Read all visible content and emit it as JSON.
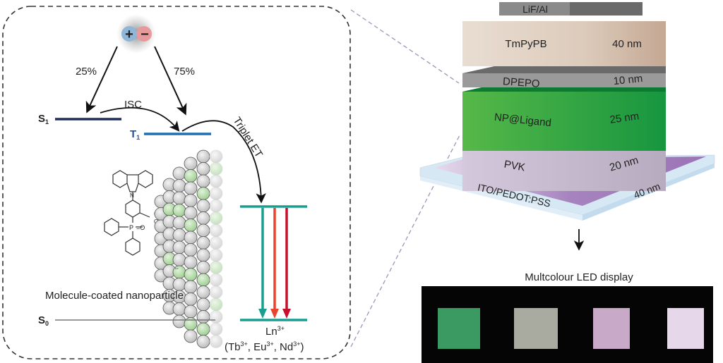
{
  "left_panel": {
    "exciton": {
      "plus": "+",
      "minus": "−"
    },
    "singlet_fraction": "25%",
    "triplet_fraction": "75%",
    "isc_label": "ISC",
    "s1": {
      "main": "S",
      "sub": "1"
    },
    "t1": {
      "main": "T",
      "sub": "1"
    },
    "s0": {
      "main": "S",
      "sub": "0"
    },
    "triplet_et_label": "Triplet ET",
    "nanoparticle_caption": "Molecule-coated nanoparticle",
    "ln_small_label": "Ln",
    "ln_label": {
      "main": "Ln",
      "sup": "3+"
    },
    "ions": {
      "open": "(Tb",
      "sup1": "3+",
      "sep1": ", Eu",
      "sup2": "3+",
      "sep2": ", Nd",
      "sup3": "3+",
      "close": ")"
    },
    "molecule_atoms": {
      "n": "N",
      "p": "P",
      "o_p": "=O",
      "o1": "O",
      "o2": "O"
    },
    "colors": {
      "s1": "#1f2d5a",
      "t1": "#1f6fb2",
      "ln_levels": "#1a9e8f",
      "emission": [
        "#1a9e8f",
        "#e8452c",
        "#c8102e"
      ],
      "np_green": "#b9deb0",
      "np_gray": "#d4d4d4"
    }
  },
  "device_stack": {
    "layers": [
      {
        "name": "LiF/Al",
        "thickness": ""
      },
      {
        "name": "TmPyPB",
        "thickness": "40 nm"
      },
      {
        "name": "DPEPO",
        "thickness": "10 nm"
      },
      {
        "name": "NP@Ligand",
        "thickness": "25 nm"
      },
      {
        "name": "PVK",
        "thickness": "20 nm"
      },
      {
        "name": "ITO/PEDOT:PSS",
        "thickness": "40 nm"
      }
    ],
    "colors": {
      "lif": "#6d6d6d",
      "tmpypb": "#dcccbd",
      "dpepo": "#8a8a8a",
      "np": "#3fae49",
      "pvk": "#c9bcd2",
      "substrate": "#d6e8f4",
      "pedot": "#a27cbc"
    }
  },
  "display": {
    "title": "Multcolour LED display",
    "pixel_colors": [
      "#3a9a62",
      "#a9aaa0",
      "#c8a9c8",
      "#e6d8ea"
    ]
  }
}
